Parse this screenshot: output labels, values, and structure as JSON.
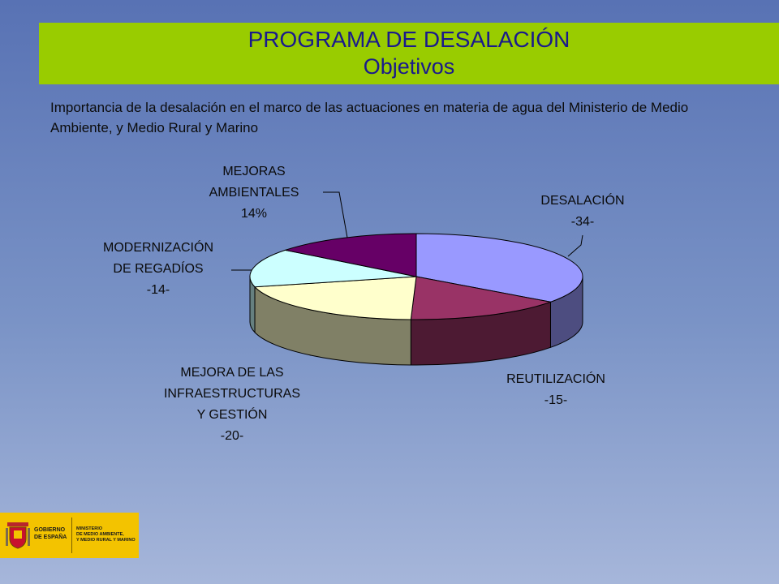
{
  "header": {
    "title": "PROGRAMA DE DESALACIÓN",
    "subtitle": "Objetivos"
  },
  "intro_text": "Importancia de la desalación en el marco de las actuaciones en materia de agua del Ministerio de Medio Ambiente, y Medio Rural y Marino",
  "logo": {
    "line1": "GOBIERNO",
    "line2": "DE ESPAÑA",
    "ministry1": "MINISTERIO",
    "ministry2": "DE MEDIO AMBIENTE,",
    "ministry3": "Y MEDIO RURAL Y MARINO"
  },
  "colors": {
    "banner": "#99cc00",
    "title_text": "#1a1a8c"
  },
  "chart_data": {
    "type": "pie",
    "style": "3d",
    "title": "",
    "slices": [
      {
        "label_lines": [
          "DESALACIÓN",
          "-34-"
        ],
        "value": 34,
        "color": "#9999ff"
      },
      {
        "label_lines": [
          "REUTILIZACIÓN",
          "-15-"
        ],
        "value": 15,
        "color": "#993366"
      },
      {
        "label_lines": [
          "MEJORA DE LAS",
          "INFRAESTRUCTURAS",
          "Y GESTIÓN",
          "-20-"
        ],
        "value": 20,
        "color": "#ffffcc"
      },
      {
        "label_lines": [
          "MODERNIZACIÓN",
          "DE REGADÍOS",
          "-14-"
        ],
        "value": 14,
        "color": "#ccffff"
      },
      {
        "label_lines": [
          "MEJORAS",
          "AMBIENTALES",
          "14%"
        ],
        "value": 14,
        "color": "#660066"
      }
    ]
  }
}
